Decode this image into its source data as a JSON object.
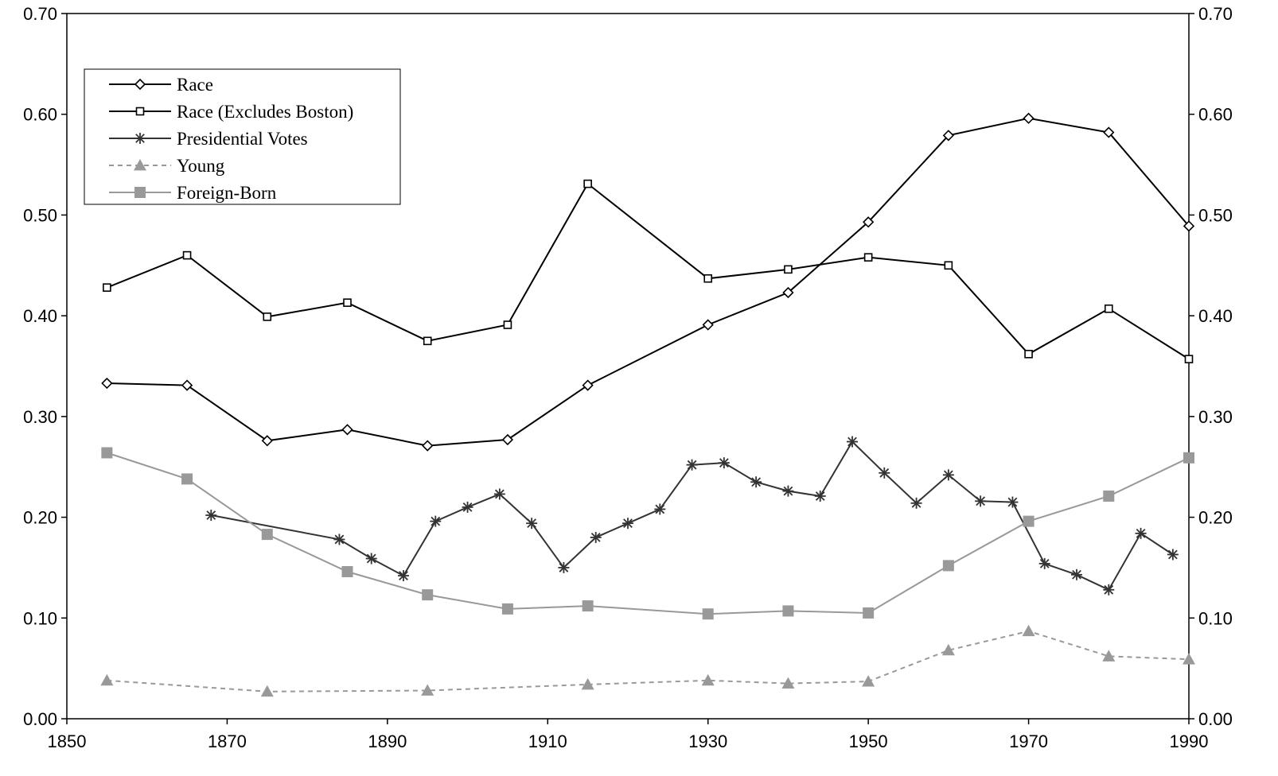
{
  "chart_data": {
    "type": "line",
    "title": "",
    "xlabel": "",
    "ylabel": "",
    "xlim": [
      1850,
      1990
    ],
    "ylim": [
      0,
      0.7
    ],
    "x_ticks": [
      "1850",
      "1870",
      "1890",
      "1910",
      "1930",
      "1950",
      "1970",
      "1990"
    ],
    "x_tick_values": [
      1850,
      1870,
      1890,
      1910,
      1930,
      1950,
      1970,
      1990
    ],
    "y_ticks": [
      "0.00",
      "0.10",
      "0.20",
      "0.30",
      "0.40",
      "0.50",
      "0.60",
      "0.70"
    ],
    "y_tick_values": [
      0,
      0.1,
      0.2,
      0.3,
      0.4,
      0.5,
      0.6,
      0.7
    ],
    "secondary_y_axis": true,
    "grid": false,
    "legend_position": "top-left",
    "series": [
      {
        "name": "Race",
        "color": "#000000",
        "line_style": "solid",
        "marker": "diamond-open",
        "points": [
          [
            1855,
            0.333
          ],
          [
            1865,
            0.331
          ],
          [
            1875,
            0.276
          ],
          [
            1885,
            0.287
          ],
          [
            1895,
            0.271
          ],
          [
            1905,
            0.277
          ],
          [
            1915,
            0.331
          ],
          [
            1930,
            0.391
          ],
          [
            1940,
            0.423
          ],
          [
            1950,
            0.493
          ],
          [
            1960,
            0.579
          ],
          [
            1970,
            0.596
          ],
          [
            1980,
            0.582
          ],
          [
            1990,
            0.489
          ]
        ]
      },
      {
        "name": "Race (Excludes Boston)",
        "color": "#000000",
        "line_style": "solid",
        "marker": "square-open",
        "points": [
          [
            1855,
            0.428
          ],
          [
            1865,
            0.46
          ],
          [
            1875,
            0.399
          ],
          [
            1885,
            0.413
          ],
          [
            1895,
            0.375
          ],
          [
            1905,
            0.391
          ],
          [
            1915,
            0.531
          ],
          [
            1930,
            0.437
          ],
          [
            1940,
            0.446
          ],
          [
            1950,
            0.458
          ],
          [
            1960,
            0.45
          ],
          [
            1970,
            0.362
          ],
          [
            1980,
            0.407
          ],
          [
            1990,
            0.357
          ]
        ]
      },
      {
        "name": "Presidential Votes",
        "color": "#333333",
        "line_style": "solid",
        "marker": "star",
        "points": [
          [
            1868,
            0.202
          ],
          [
            1884,
            0.178
          ],
          [
            1888,
            0.159
          ],
          [
            1892,
            0.142
          ],
          [
            1896,
            0.196
          ],
          [
            1900,
            0.21
          ],
          [
            1904,
            0.223
          ],
          [
            1908,
            0.194
          ],
          [
            1912,
            0.15
          ],
          [
            1916,
            0.18
          ],
          [
            1920,
            0.194
          ],
          [
            1924,
            0.208
          ],
          [
            1928,
            0.252
          ],
          [
            1932,
            0.254
          ],
          [
            1936,
            0.235
          ],
          [
            1940,
            0.226
          ],
          [
            1944,
            0.221
          ],
          [
            1948,
            0.275
          ],
          [
            1952,
            0.244
          ],
          [
            1956,
            0.214
          ],
          [
            1960,
            0.242
          ],
          [
            1964,
            0.216
          ],
          [
            1968,
            0.215
          ],
          [
            1972,
            0.154
          ],
          [
            1976,
            0.143
          ],
          [
            1980,
            0.128
          ],
          [
            1984,
            0.184
          ],
          [
            1988,
            0.163
          ]
        ]
      },
      {
        "name": "Young",
        "color": "#999999",
        "line_style": "dashed",
        "marker": "triangle-filled",
        "points": [
          [
            1855,
            0.038
          ],
          [
            1875,
            0.027
          ],
          [
            1895,
            0.028
          ],
          [
            1915,
            0.034
          ],
          [
            1930,
            0.038
          ],
          [
            1940,
            0.035
          ],
          [
            1950,
            0.037
          ],
          [
            1960,
            0.068
          ],
          [
            1970,
            0.087
          ],
          [
            1980,
            0.062
          ],
          [
            1990,
            0.059
          ]
        ]
      },
      {
        "name": "Foreign-Born",
        "color": "#999999",
        "line_style": "solid",
        "marker": "square-filled",
        "points": [
          [
            1855,
            0.264
          ],
          [
            1865,
            0.238
          ],
          [
            1875,
            0.183
          ],
          [
            1885,
            0.146
          ],
          [
            1895,
            0.123
          ],
          [
            1905,
            0.109
          ],
          [
            1915,
            0.112
          ],
          [
            1930,
            0.104
          ],
          [
            1940,
            0.107
          ],
          [
            1950,
            0.105
          ],
          [
            1960,
            0.152
          ],
          [
            1970,
            0.196
          ],
          [
            1980,
            0.221
          ],
          [
            1990,
            0.259
          ]
        ]
      }
    ]
  }
}
